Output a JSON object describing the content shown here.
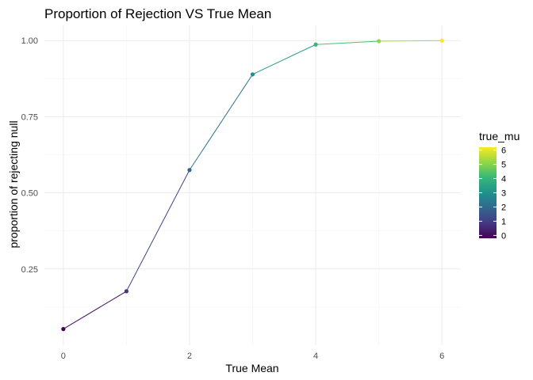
{
  "chart_data": {
    "type": "line",
    "title": "Proportion of Rejection VS True Mean",
    "xlabel": "True Mean",
    "ylabel": "proportion of rejecting null",
    "x": [
      0,
      1,
      2,
      3,
      4,
      5,
      6
    ],
    "y": [
      0.053,
      0.177,
      0.575,
      0.889,
      0.987,
      0.998,
      1.0
    ],
    "xlim": [
      -0.3,
      6.3
    ],
    "ylim": [
      0.0,
      1.05
    ],
    "x_ticks": [
      "0",
      "2",
      "4",
      "6"
    ],
    "y_ticks": [
      "0.25",
      "0.50",
      "0.75",
      "1.00"
    ],
    "grid": true,
    "color_legend": {
      "title": "true_mu",
      "ticks": [
        "0",
        "1",
        "2",
        "3",
        "4",
        "5",
        "6"
      ],
      "palette": "viridis",
      "colors": [
        "#440154",
        "#443983",
        "#31688e",
        "#21918c",
        "#35b779",
        "#90d743",
        "#fde725"
      ]
    },
    "legend_position": "right"
  }
}
